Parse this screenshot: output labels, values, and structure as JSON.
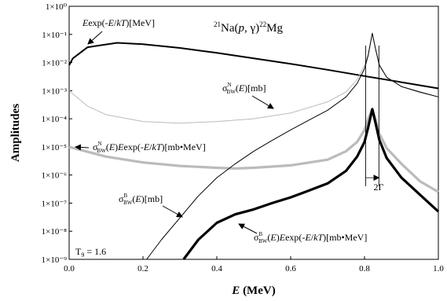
{
  "chart_data": {
    "type": "line",
    "title": "²¹Na(p, γ)²²Mg",
    "xlabel": "E (MeV)",
    "ylabel": "Amplitudes",
    "xlim": [
      0.0,
      1.0
    ],
    "ylim_log10": [
      -9,
      0
    ],
    "y_scale": "log",
    "grid": false,
    "x_ticks": [
      "0.0",
      "0.2",
      "0.4",
      "0.6",
      "0.8",
      "1.0"
    ],
    "y_ticks": [
      "1×10⁻⁹",
      "1×10⁻⁸",
      "1×10⁻⁷",
      "1×10⁻⁶",
      "1×10⁻⁵",
      "1×10⁻⁴",
      "1×10⁻³",
      "1×10⁻²",
      "1×10⁻¹",
      "1×10⁰"
    ],
    "annotations": {
      "temperature": "T₉ = 1.6",
      "width": "2Γ",
      "label_boltz": "Eexp(-E/kT)[MeV]",
      "label_sigma_n": "σ^N_BW(E)[mb]",
      "label_prod_n": "σ^N_BW(E)Eexp(-E/kT)[mb•MeV]",
      "label_sigma_b": "σ^B_BW(E)[mb]",
      "label_prod_b": "σ^B_BW(E)Eexp(-E/kT)[mb•MeV]"
    },
    "resonance": {
      "E_r": 0.821,
      "width_markers": [
        0.803,
        0.839
      ]
    },
    "series": [
      {
        "color": "#000000",
        "style": "medium",
        "x": [
          0.0,
          0.01,
          0.05,
          0.13,
          0.2,
          0.3,
          0.4,
          0.5,
          0.6,
          0.7,
          0.8,
          0.9,
          1.0
        ],
        "y": [
          0.008,
          0.014,
          0.035,
          0.05,
          0.045,
          0.033,
          0.022,
          0.014,
          0.009,
          0.0055,
          0.0033,
          0.002,
          0.0012
        ]
      },
      {
        "color": "#bbbbbb",
        "style": "thin",
        "x": [
          0.0,
          0.05,
          0.1,
          0.2,
          0.3,
          0.4,
          0.5,
          0.6,
          0.7,
          0.75,
          0.78,
          0.8,
          0.81,
          0.821,
          0.83,
          0.84,
          0.86,
          0.9,
          0.95,
          1.0
        ],
        "y": [
          0.001,
          0.00028,
          0.00014,
          8e-05,
          7e-05,
          8e-05,
          0.0001,
          0.00016,
          0.0004,
          0.0009,
          0.0025,
          0.008,
          0.02,
          0.11,
          0.03,
          0.009,
          0.003,
          0.0014,
          0.00085,
          0.0006
        ]
      },
      {
        "color": "#bbbbbb",
        "style": "thick",
        "x": [
          0.0,
          0.1,
          0.2,
          0.3,
          0.4,
          0.45,
          0.5,
          0.6,
          0.7,
          0.75,
          0.78,
          0.8,
          0.81,
          0.821,
          0.83,
          0.84,
          0.86,
          0.9,
          0.95,
          1.0
        ],
        "y": [
          1e-05,
          4.5e-06,
          2.8e-06,
          2.1e-06,
          1.8e-06,
          1.7e-06,
          1.8e-06,
          2.2e-06,
          3.5e-06,
          7e-06,
          1.5e-05,
          4e-05,
          0.0001,
          0.00022,
          9e-05,
          3e-05,
          9e-06,
          2.5e-06,
          6e-07,
          2.5e-07
        ]
      },
      {
        "color": "#000000",
        "style": "thin",
        "x": [
          0.21,
          0.25,
          0.3,
          0.35,
          0.4,
          0.45,
          0.5,
          0.55,
          0.6,
          0.65,
          0.7,
          0.75,
          0.78,
          0.8,
          0.81,
          0.821,
          0.83,
          0.84,
          0.86,
          0.9,
          0.95,
          1.0
        ],
        "y": [
          1e-09,
          5e-09,
          3e-08,
          1.8e-07,
          8e-07,
          2.5e-06,
          7e-06,
          1.7e-05,
          4e-05,
          9e-05,
          0.0002,
          0.0006,
          0.0018,
          0.006,
          0.018,
          0.11,
          0.03,
          0.008,
          0.003,
          0.0014,
          0.0009,
          0.0006
        ]
      },
      {
        "color": "#000000",
        "style": "thick",
        "x": [
          0.31,
          0.35,
          0.4,
          0.45,
          0.5,
          0.55,
          0.6,
          0.65,
          0.7,
          0.75,
          0.78,
          0.8,
          0.81,
          0.821,
          0.83,
          0.84,
          0.86,
          0.9,
          0.95,
          1.0
        ],
        "y": [
          1e-09,
          5e-09,
          2e-08,
          4e-08,
          6e-08,
          1e-07,
          1.6e-07,
          2.8e-07,
          5e-07,
          1.4e-06,
          4.5e-06,
          1.5e-05,
          5e-05,
          0.00022,
          7e-05,
          1.8e-05,
          4e-06,
          8e-07,
          2e-07,
          5e-08
        ]
      }
    ]
  }
}
